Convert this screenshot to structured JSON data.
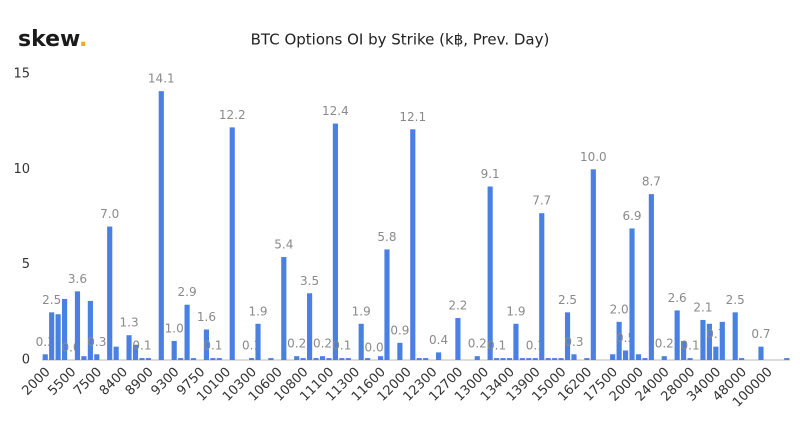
{
  "brand": "skew",
  "brand_dot": ".",
  "chart_data": {
    "type": "bar",
    "title": "BTC Options OI by Strike (k฿, Prev. Day)",
    "color": "#4a80e2",
    "ylim": [
      0,
      15
    ],
    "yticks": [
      0,
      5,
      10,
      15
    ],
    "grid": false,
    "categories": [
      "2000",
      null,
      null,
      null,
      "5500",
      null,
      null,
      null,
      "7500",
      null,
      null,
      null,
      "8400",
      null,
      null,
      null,
      "8900",
      null,
      null,
      null,
      "9300",
      null,
      null,
      null,
      "9750",
      null,
      null,
      null,
      "10100",
      null,
      null,
      null,
      "10300",
      null,
      null,
      null,
      "10600",
      null,
      null,
      null,
      "10800",
      null,
      null,
      null,
      "11100",
      null,
      null,
      null,
      "11300",
      null,
      null,
      null,
      "11600",
      null,
      null,
      null,
      "12000",
      null,
      null,
      null,
      "12300",
      null,
      null,
      null,
      "12700",
      null,
      null,
      null,
      "13000",
      null,
      null,
      null,
      "13400",
      null,
      null,
      null,
      "13900",
      null,
      null,
      null,
      "15000",
      null,
      null,
      null,
      "16200",
      null,
      null,
      null,
      "17500",
      null,
      null,
      null,
      "20000",
      null,
      null,
      null,
      "24000",
      null,
      null,
      null,
      "28000",
      null,
      null,
      null,
      "34000",
      null,
      null,
      null,
      "48000",
      null,
      null,
      null,
      "100000",
      null,
      null,
      null
    ],
    "values": [
      0.3,
      2.5,
      2.4,
      3.2,
      0.0,
      3.6,
      0.2,
      3.1,
      0.3,
      0.0,
      7.0,
      0.7,
      0.0,
      1.3,
      0.8,
      0.1,
      0.1,
      0.0,
      14.1,
      0.0,
      1.0,
      0.1,
      2.9,
      0.1,
      0.0,
      1.6,
      0.1,
      0.1,
      0.0,
      12.2,
      0.0,
      0.0,
      0.1,
      1.9,
      0.0,
      0.1,
      0.0,
      5.4,
      0.0,
      0.2,
      0.1,
      3.5,
      0.1,
      0.2,
      0.1,
      12.4,
      0.1,
      0.1,
      0.0,
      1.9,
      0.1,
      0.0,
      0.2,
      5.8,
      0.0,
      0.9,
      0.0,
      12.1,
      0.1,
      0.1,
      0.0,
      0.4,
      0.0,
      0.0,
      2.2,
      0.0,
      0.0,
      0.2,
      0.0,
      9.1,
      0.1,
      0.1,
      0.1,
      1.9,
      0.1,
      0.1,
      0.1,
      7.7,
      0.1,
      0.1,
      0.1,
      2.5,
      0.3,
      0.0,
      0.1,
      10.0,
      0.0,
      0.0,
      0.3,
      2.0,
      0.5,
      6.9,
      0.3,
      0.1,
      8.7,
      0.0,
      0.2,
      0.0,
      2.6,
      1.0,
      0.1,
      0.0,
      2.1,
      1.9,
      0.7,
      2.0,
      0.0,
      2.5,
      0.1,
      0.0,
      0.0,
      0.7,
      0.0,
      0.0,
      0.0,
      0.1
    ],
    "value_labels": [
      "0.3",
      "2.5",
      null,
      null,
      "0.0",
      "3.6",
      null,
      null,
      "0.3",
      null,
      "7.0",
      null,
      null,
      "1.3",
      null,
      "0.1",
      null,
      null,
      "14.1",
      null,
      "1.0",
      null,
      "2.9",
      null,
      null,
      "1.6",
      "0.1",
      null,
      null,
      "12.2",
      null,
      null,
      "0.1",
      "1.9",
      null,
      null,
      null,
      "5.4",
      null,
      "0.2",
      null,
      "3.5",
      null,
      "0.2",
      null,
      "12.4",
      "0.1",
      null,
      null,
      "1.9",
      null,
      "0.0",
      null,
      "5.8",
      null,
      "0.9",
      null,
      "12.1",
      null,
      null,
      null,
      "0.4",
      null,
      null,
      "2.2",
      null,
      null,
      "0.2",
      null,
      "9.1",
      "0.1",
      null,
      null,
      "1.9",
      null,
      null,
      "0.1",
      "7.7",
      null,
      null,
      null,
      "2.5",
      "0.3",
      null,
      null,
      "10.0",
      null,
      null,
      null,
      "2.0",
      "0.5",
      "6.9",
      null,
      null,
      "8.7",
      null,
      "0.2",
      null,
      "2.6",
      null,
      "0.1",
      null,
      "2.1",
      null,
      "0.7",
      null,
      null,
      "2.5",
      null,
      null,
      null,
      "0.7",
      null,
      null,
      null,
      null
    ]
  }
}
